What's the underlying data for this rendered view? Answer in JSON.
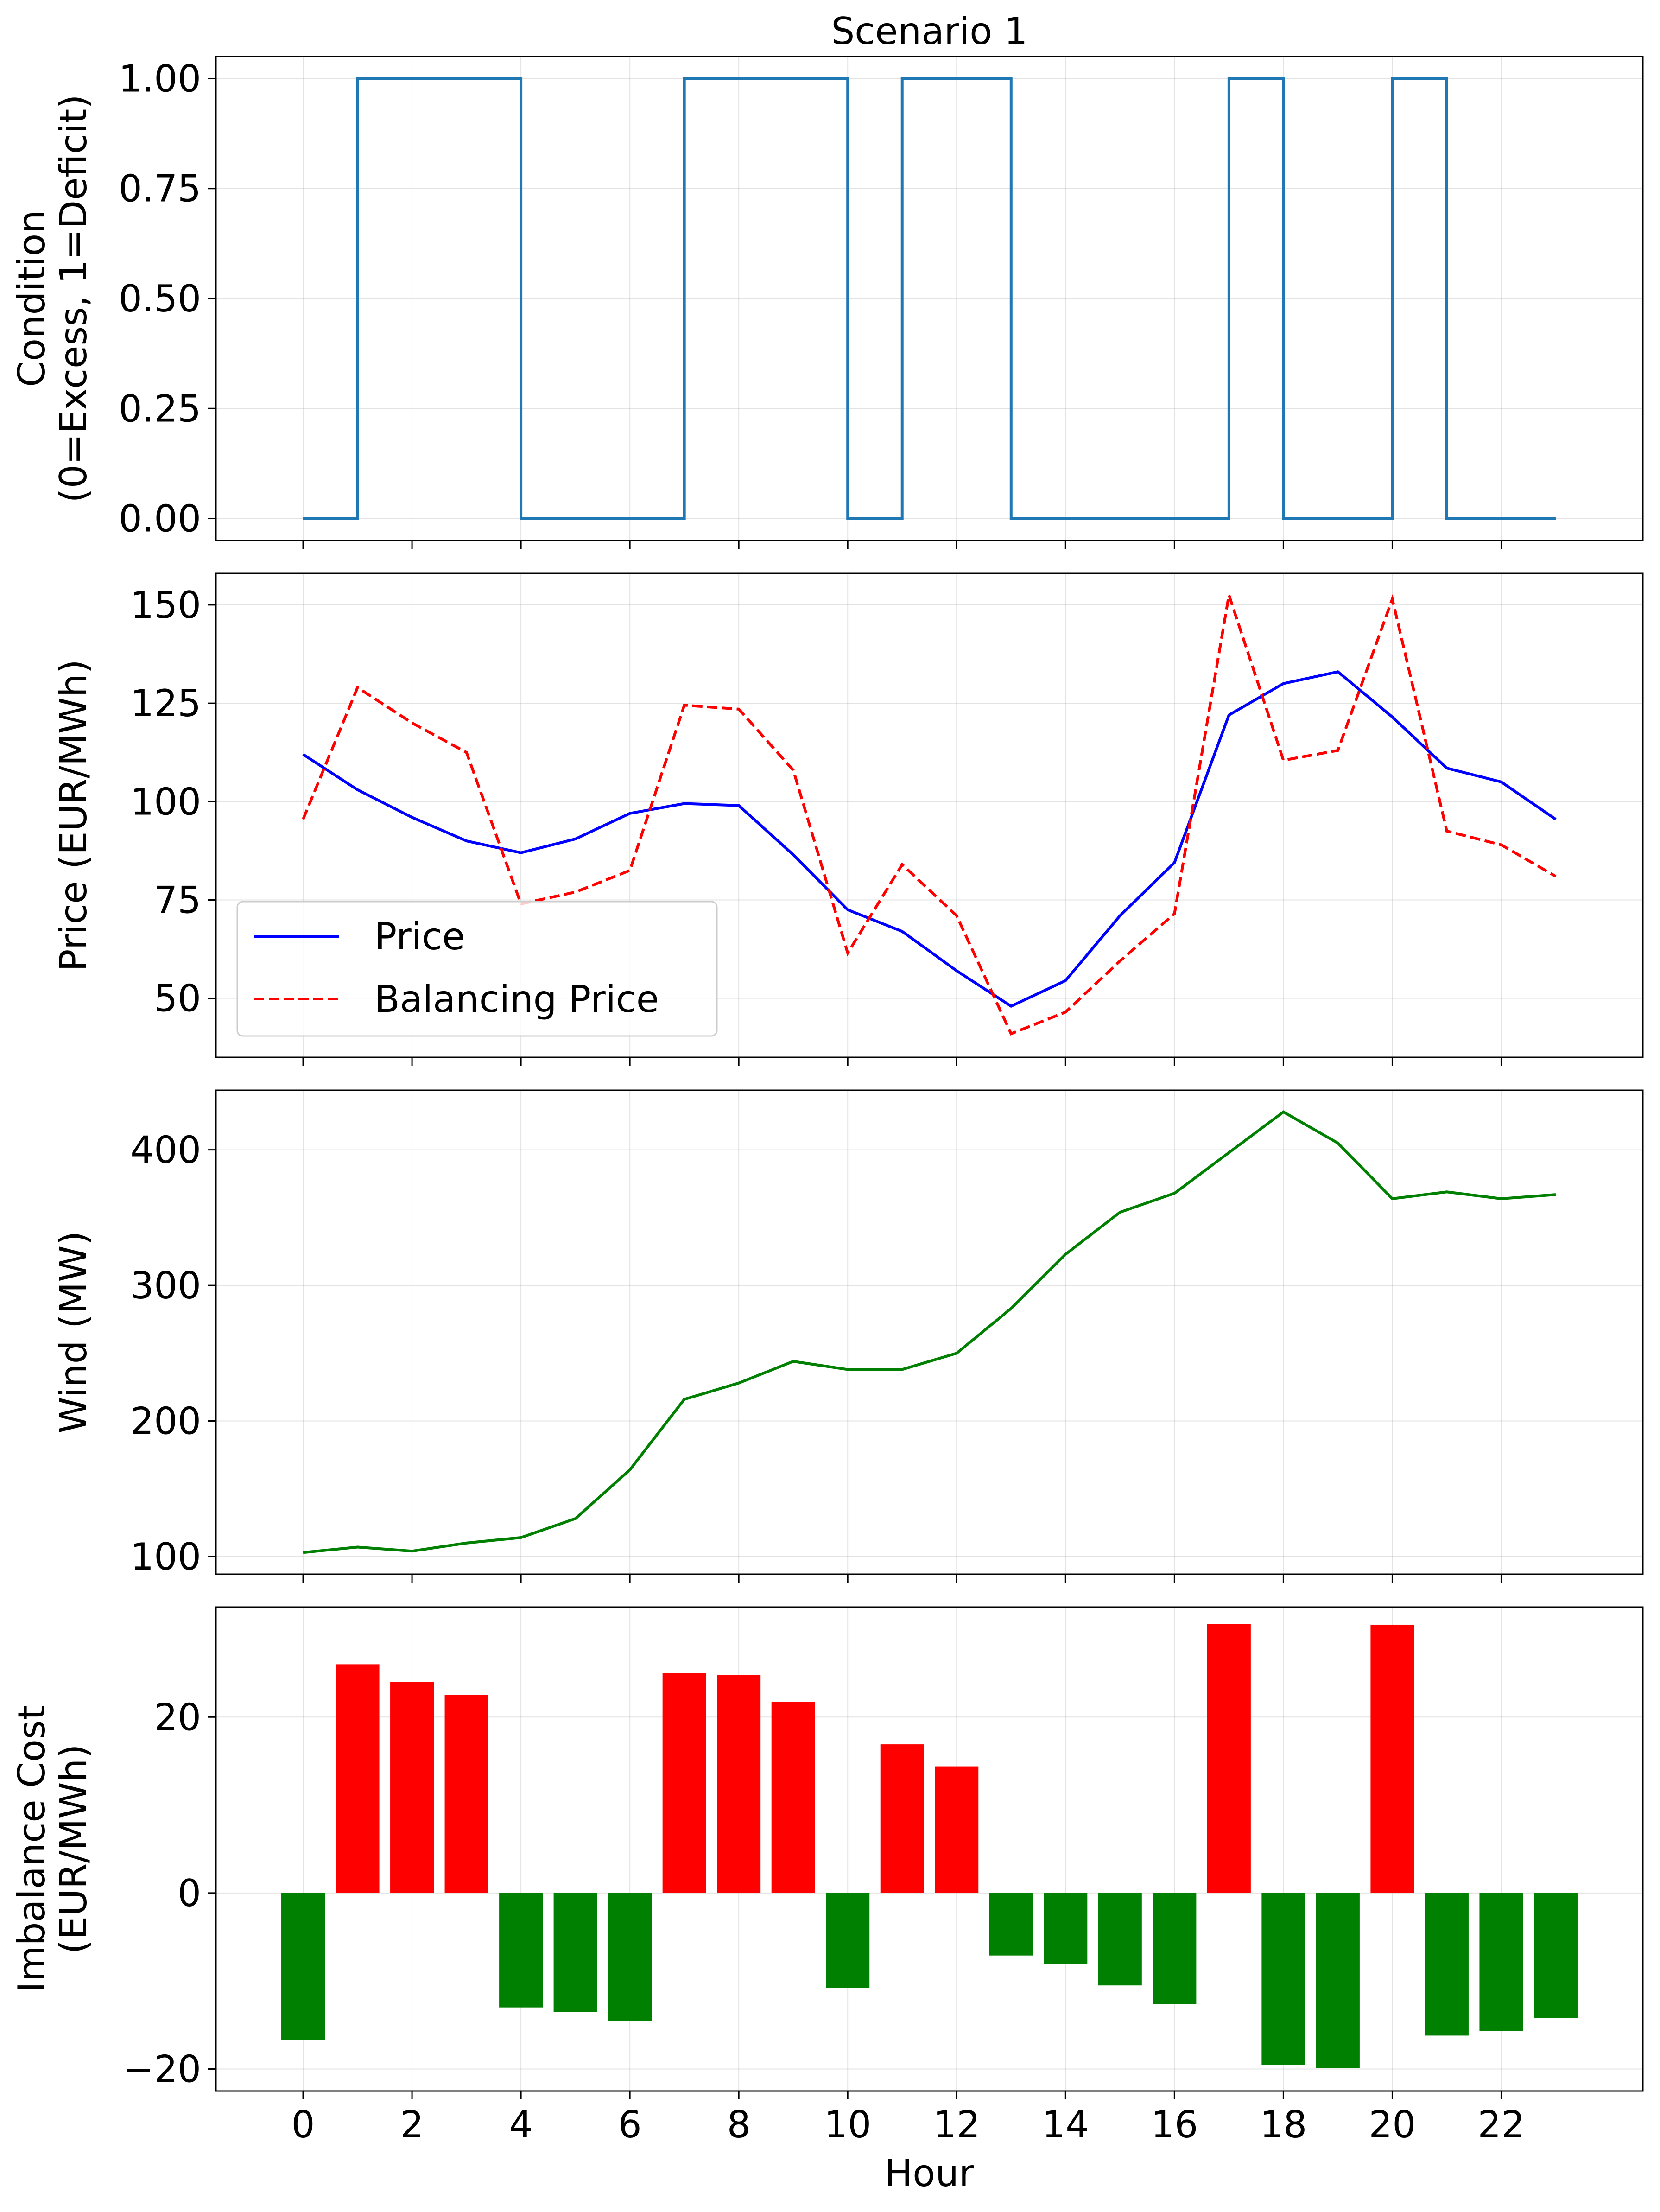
{
  "chart_data": [
    {
      "type": "line",
      "step": true,
      "title": "Scenario 1",
      "ylabel": [
        "Condition",
        "(0=Excess, 1=Deficit)"
      ],
      "xlabel": "",
      "xlim": [
        -1.6,
        24.6
      ],
      "ylim": [
        -0.05,
        1.05
      ],
      "yticks": [
        0,
        0.25,
        0.5,
        0.75,
        1
      ],
      "ytick_labels": [
        "0.00",
        "0.25",
        "0.50",
        "0.75",
        "1.00"
      ],
      "xticks": [
        0,
        2,
        4,
        6,
        8,
        10,
        12,
        14,
        16,
        18,
        20,
        22
      ],
      "grid": true,
      "series": [
        {
          "color": "#1f77b4",
          "style": "solid",
          "x": [
            0,
            1,
            2,
            3,
            4,
            5,
            6,
            7,
            8,
            9,
            10,
            11,
            12,
            13,
            14,
            15,
            16,
            17,
            18,
            19,
            20,
            21,
            22,
            23
          ],
          "values": [
            0,
            1,
            1,
            1,
            0,
            0,
            0,
            1,
            1,
            1,
            0,
            1,
            1,
            0,
            0,
            0,
            0,
            1,
            0,
            0,
            1,
            0,
            0,
            0
          ]
        }
      ]
    },
    {
      "type": "line",
      "title": "",
      "ylabel": [
        "Price (EUR/MWh)"
      ],
      "xlabel": "",
      "xlim": [
        -1.6,
        24.6
      ],
      "ylim": [
        35,
        158
      ],
      "yticks": [
        50,
        75,
        100,
        125,
        150
      ],
      "ytick_labels": [
        "50",
        "75",
        "100",
        "125",
        "150"
      ],
      "xticks": [
        0,
        2,
        4,
        6,
        8,
        10,
        12,
        14,
        16,
        18,
        20,
        22
      ],
      "grid": true,
      "legend": "lower-left",
      "series": [
        {
          "name": "Price",
          "color": "#0000ff",
          "style": "solid",
          "x": [
            0,
            1,
            2,
            3,
            4,
            5,
            6,
            7,
            8,
            9,
            10,
            11,
            12,
            13,
            14,
            15,
            16,
            17,
            18,
            19,
            20,
            21,
            22,
            23
          ],
          "values": [
            112,
            103,
            96,
            90,
            87,
            90.5,
            97,
            99.5,
            99,
            86.5,
            72.5,
            67,
            57,
            48,
            54.5,
            71,
            84.5,
            122,
            130,
            133,
            121.5,
            108.5,
            105,
            95.5
          ]
        },
        {
          "name": "Balancing Price",
          "color": "#ff0000",
          "style": "dashed",
          "x": [
            0,
            1,
            2,
            3,
            4,
            5,
            6,
            7,
            8,
            9,
            10,
            11,
            12,
            13,
            14,
            15,
            16,
            17,
            18,
            19,
            20,
            21,
            22,
            23
          ],
          "values": [
            95.5,
            129,
            120,
            112.5,
            74,
            77,
            82.5,
            124.5,
            123.5,
            108,
            61.5,
            84,
            71,
            41,
            46.5,
            59.5,
            71.5,
            152.5,
            110.5,
            113,
            151.5,
            92.5,
            89,
            81
          ]
        }
      ]
    },
    {
      "type": "line",
      "title": "",
      "ylabel": [
        "Wind (MW)"
      ],
      "xlabel": "",
      "xlim": [
        -1.6,
        24.6
      ],
      "ylim": [
        87,
        444
      ],
      "yticks": [
        100,
        200,
        300,
        400
      ],
      "ytick_labels": [
        "100",
        "200",
        "300",
        "400"
      ],
      "xticks": [
        0,
        2,
        4,
        6,
        8,
        10,
        12,
        14,
        16,
        18,
        20,
        22
      ],
      "grid": true,
      "series": [
        {
          "color": "#008000",
          "style": "solid",
          "x": [
            0,
            1,
            2,
            3,
            4,
            5,
            6,
            7,
            8,
            9,
            10,
            11,
            12,
            13,
            14,
            15,
            16,
            17,
            18,
            19,
            20,
            21,
            22,
            23
          ],
          "values": [
            103,
            107,
            104,
            110,
            114,
            128,
            164,
            216,
            228,
            244,
            238,
            238,
            250,
            283,
            323,
            354,
            368,
            398,
            428,
            405,
            364,
            369,
            364,
            367
          ]
        }
      ]
    },
    {
      "type": "bar",
      "title": "",
      "ylabel": [
        "Imbalance Cost",
        "(EUR/MWh)"
      ],
      "xlabel": "Hour",
      "xlim": [
        -1.6,
        24.6
      ],
      "ylim": [
        -22.5,
        32.5
      ],
      "yticks": [
        -20,
        0,
        20
      ],
      "ytick_labels": [
        "−20",
        "0",
        "20"
      ],
      "xticks": [
        0,
        2,
        4,
        6,
        8,
        10,
        12,
        14,
        16,
        18,
        20,
        22
      ],
      "xtick_labels": [
        "0",
        "2",
        "4",
        "6",
        "8",
        "10",
        "12",
        "14",
        "16",
        "18",
        "20",
        "22"
      ],
      "grid": true,
      "positive_color": "#ff0000",
      "negative_color": "#008000",
      "x": [
        0,
        1,
        2,
        3,
        4,
        5,
        6,
        7,
        8,
        9,
        10,
        11,
        12,
        13,
        14,
        15,
        16,
        17,
        18,
        19,
        20,
        21,
        22,
        23
      ],
      "values": [
        -16.7,
        26,
        24,
        22.5,
        -13,
        -13.5,
        -14.5,
        25,
        24.8,
        21.7,
        -10.8,
        16.9,
        14.4,
        -7.1,
        -8.1,
        -10.5,
        -12.6,
        30.6,
        -19.5,
        -19.9,
        30.5,
        -16.2,
        -15.7,
        -14.2
      ]
    }
  ]
}
